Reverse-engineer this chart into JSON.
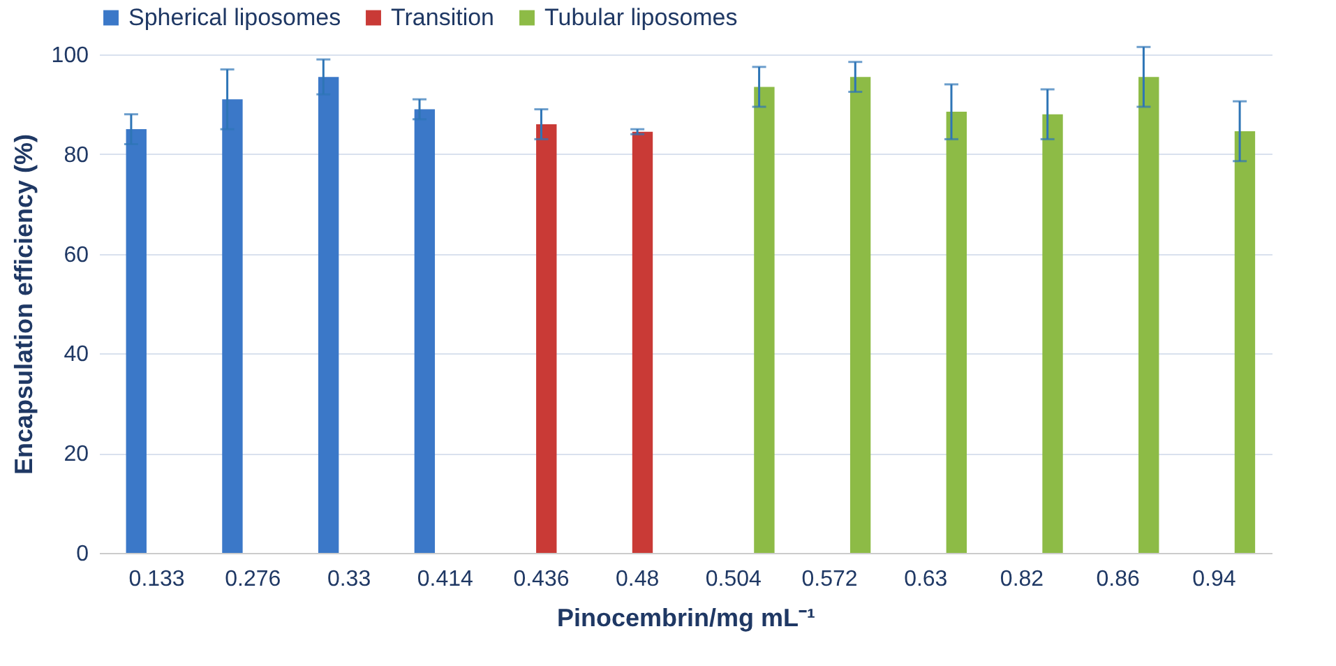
{
  "chart_data": {
    "type": "bar",
    "xlabel": "Pinocembrin/mg mL⁻¹",
    "ylabel": "Encapsulation efficiency (%)",
    "categories": [
      "0.133",
      "0.276",
      "0.33",
      "0.414",
      "0.436",
      "0.48",
      "0.504",
      "0.572",
      "0.63",
      "0.82",
      "0.86",
      "0.94"
    ],
    "series": [
      {
        "name": "Spherical liposomes",
        "color": "#3b78c8",
        "values": [
          85,
          91,
          95.5,
          89,
          null,
          null,
          null,
          null,
          null,
          null,
          null,
          null
        ],
        "errors": [
          3,
          6,
          3.5,
          2,
          null,
          null,
          null,
          null,
          null,
          null,
          null,
          null
        ]
      },
      {
        "name": "Transition",
        "color": "#c93a36",
        "values": [
          null,
          null,
          null,
          null,
          86,
          84.5,
          null,
          null,
          null,
          null,
          null,
          null
        ],
        "errors": [
          null,
          null,
          null,
          null,
          3,
          0.5,
          null,
          null,
          null,
          null,
          null,
          null
        ]
      },
      {
        "name": "Tubular liposomes",
        "color": "#8dbb46",
        "values": [
          null,
          null,
          null,
          null,
          null,
          null,
          93.5,
          95.5,
          88.5,
          88,
          95.5,
          84.6
        ],
        "errors": [
          null,
          null,
          null,
          null,
          null,
          null,
          4,
          3,
          5.5,
          5,
          6,
          6
        ]
      }
    ],
    "ylim": [
      0,
      100
    ],
    "yticks": [
      0,
      20,
      40,
      60,
      80,
      100
    ],
    "grid": "y",
    "legend": "top"
  }
}
